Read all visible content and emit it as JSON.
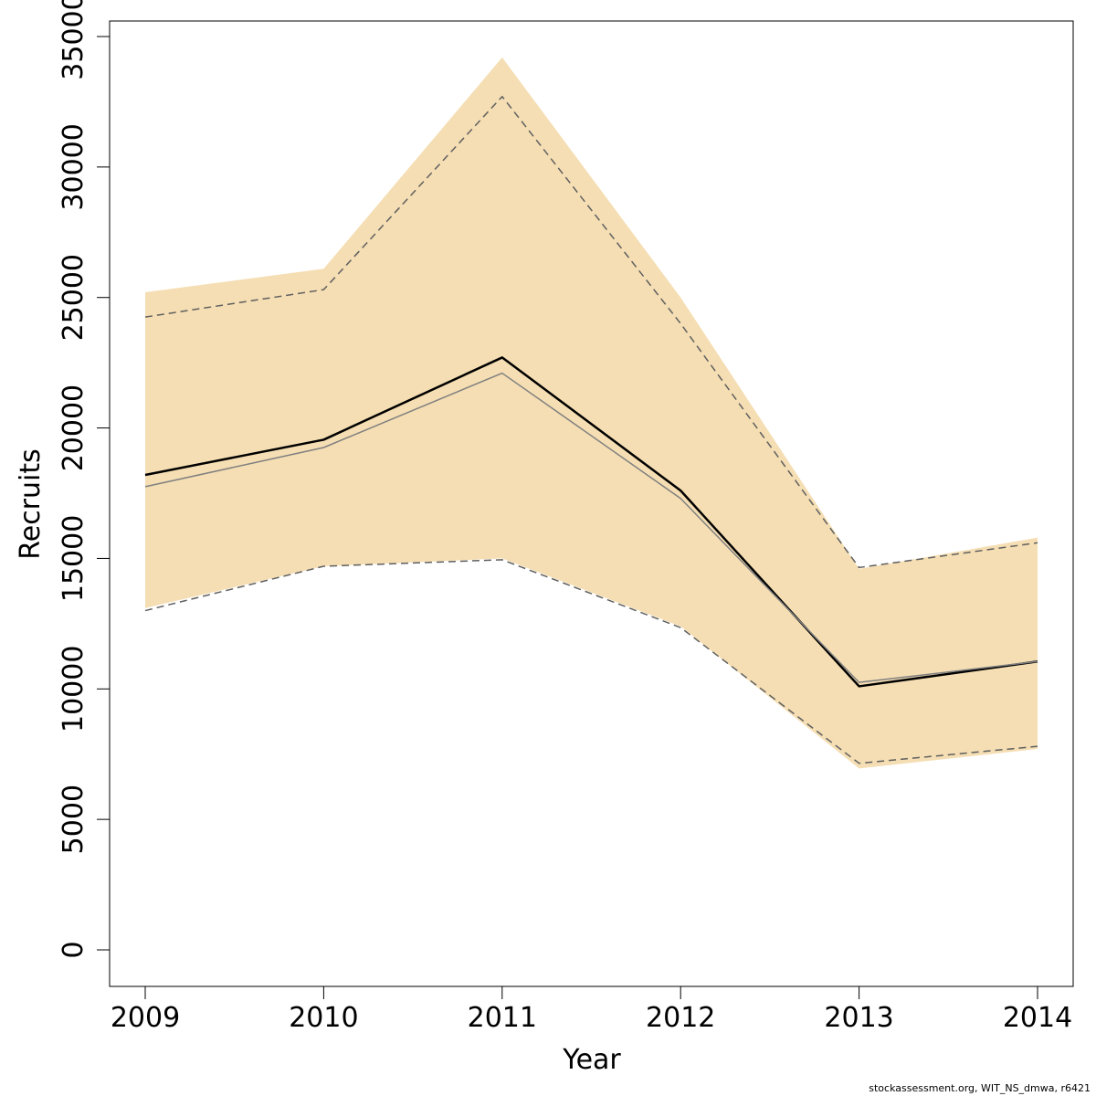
{
  "chart_data": {
    "type": "line",
    "x": [
      2009,
      2010,
      2011,
      2012,
      2013,
      2014
    ],
    "xlabel": "Year",
    "ylabel": "Recruits",
    "xlim": [
      2009,
      2014
    ],
    "ylim": [
      0,
      35000
    ],
    "x_ticks": [
      "2009",
      "2010",
      "2011",
      "2012",
      "2013",
      "2014"
    ],
    "y_ticks": [
      "0",
      "5000",
      "10000",
      "15000",
      "20000",
      "25000",
      "30000",
      "35000"
    ],
    "grid": false,
    "band": {
      "upper": [
        25200,
        26100,
        34200,
        25000,
        14600,
        15800
      ],
      "lower": [
        13100,
        14700,
        15000,
        12400,
        6950,
        7700
      ],
      "color": "#f5deb3"
    },
    "series": [
      {
        "values": [
          18200,
          19550,
          22700,
          17600,
          10100,
          11050
        ],
        "color": "#000000",
        "style": "solid",
        "width": 2.5
      },
      {
        "values": [
          17750,
          19250,
          22100,
          17300,
          10250,
          11050
        ],
        "color": "#808080",
        "style": "solid",
        "width": 1.5
      },
      {
        "values": [
          24250,
          25300,
          32700,
          24000,
          14650,
          15600
        ],
        "color": "#606060",
        "style": "dashed",
        "width": 1.5
      },
      {
        "values": [
          13000,
          14700,
          14950,
          12350,
          7150,
          7800
        ],
        "color": "#606060",
        "style": "dashed",
        "width": 1.5
      }
    ]
  },
  "credit": "stockassessment.org, WIT_NS_dmwa, r6421"
}
